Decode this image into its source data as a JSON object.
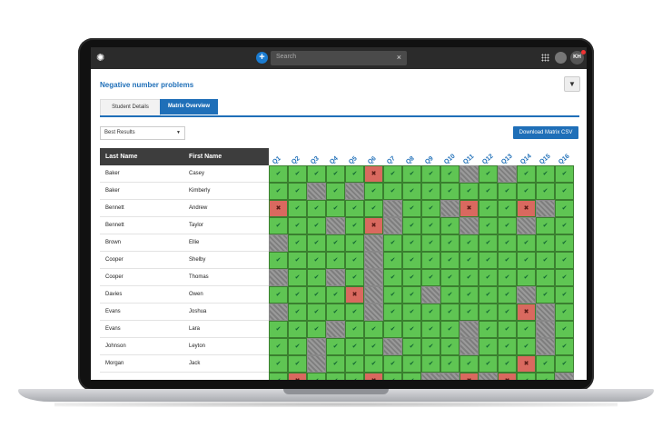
{
  "search": {
    "placeholder": "Search"
  },
  "user": {
    "initials": "KH"
  },
  "page": {
    "title": "Negative number problems"
  },
  "tabs": [
    {
      "label": "Student Details"
    },
    {
      "label": "Matrix Overview"
    }
  ],
  "controls": {
    "select_value": "Best Results",
    "download_label": "Download Matrix CSV"
  },
  "table": {
    "headers": {
      "last": "Last Name",
      "first": "First Name"
    },
    "questions": [
      "Q1",
      "Q2",
      "Q3",
      "Q4",
      "Q5",
      "Q6",
      "Q7",
      "Q8",
      "Q9",
      "Q10",
      "Q11",
      "Q12",
      "Q13",
      "Q14",
      "Q15",
      "Q16"
    ],
    "rows": [
      {
        "last": "Baker",
        "first": "Casey",
        "results": [
          "ok",
          "ok",
          "ok",
          "ok",
          "ok",
          "x",
          "ok",
          "ok",
          "ok",
          "ok",
          "na",
          "ok",
          "na",
          "ok",
          "ok",
          "ok"
        ]
      },
      {
        "last": "Baker",
        "first": "Kimberly",
        "results": [
          "ok",
          "ok",
          "na",
          "ok",
          "na",
          "ok",
          "ok",
          "ok",
          "ok",
          "ok",
          "ok",
          "ok",
          "ok",
          "ok",
          "ok",
          "ok"
        ]
      },
      {
        "last": "Bennett",
        "first": "Andrew",
        "results": [
          "x",
          "ok",
          "ok",
          "ok",
          "ok",
          "ok",
          "na",
          "ok",
          "ok",
          "na",
          "x",
          "ok",
          "ok",
          "x",
          "na",
          "ok"
        ]
      },
      {
        "last": "Bennett",
        "first": "Taylor",
        "results": [
          "ok",
          "ok",
          "ok",
          "na",
          "ok",
          "x",
          "na",
          "ok",
          "ok",
          "ok",
          "na",
          "ok",
          "ok",
          "na",
          "ok",
          "ok"
        ]
      },
      {
        "last": "Brown",
        "first": "Ellie",
        "results": [
          "na",
          "ok",
          "ok",
          "ok",
          "ok",
          "na",
          "ok",
          "ok",
          "ok",
          "ok",
          "ok",
          "ok",
          "ok",
          "ok",
          "ok",
          "ok"
        ]
      },
      {
        "last": "Cooper",
        "first": "Shelby",
        "results": [
          "ok",
          "ok",
          "ok",
          "ok",
          "ok",
          "na",
          "ok",
          "ok",
          "ok",
          "ok",
          "ok",
          "ok",
          "ok",
          "ok",
          "ok",
          "ok"
        ]
      },
      {
        "last": "Cooper",
        "first": "Thomas",
        "results": [
          "na",
          "ok",
          "ok",
          "na",
          "ok",
          "na",
          "ok",
          "ok",
          "ok",
          "ok",
          "ok",
          "ok",
          "ok",
          "ok",
          "ok",
          "ok"
        ]
      },
      {
        "last": "Davies",
        "first": "Owen",
        "results": [
          "ok",
          "ok",
          "ok",
          "ok",
          "x",
          "na",
          "ok",
          "ok",
          "na",
          "ok",
          "ok",
          "ok",
          "ok",
          "na",
          "ok",
          "ok"
        ]
      },
      {
        "last": "Evans",
        "first": "Joshua",
        "results": [
          "na",
          "ok",
          "ok",
          "ok",
          "ok",
          "na",
          "ok",
          "ok",
          "ok",
          "ok",
          "ok",
          "ok",
          "ok",
          "x",
          "na",
          "ok"
        ]
      },
      {
        "last": "Evans",
        "first": "Lara",
        "results": [
          "ok",
          "ok",
          "ok",
          "na",
          "ok",
          "ok",
          "ok",
          "ok",
          "ok",
          "ok",
          "na",
          "ok",
          "ok",
          "ok",
          "na",
          "ok"
        ]
      },
      {
        "last": "Johnson",
        "first": "Leyton",
        "results": [
          "ok",
          "ok",
          "na",
          "ok",
          "ok",
          "ok",
          "na",
          "ok",
          "ok",
          "ok",
          "na",
          "ok",
          "ok",
          "ok",
          "na",
          "ok"
        ]
      },
      {
        "last": "Morgan",
        "first": "Jack",
        "results": [
          "ok",
          "ok",
          "na",
          "ok",
          "ok",
          "ok",
          "ok",
          "ok",
          "ok",
          "ok",
          "ok",
          "ok",
          "ok",
          "x",
          "ok",
          "ok"
        ]
      },
      {
        "last": "",
        "first": "",
        "results": [
          "ok",
          "x",
          "ok",
          "ok",
          "ok",
          "x",
          "ok",
          "ok",
          "na",
          "na",
          "x",
          "na",
          "x",
          "ok",
          "ok",
          "na"
        ]
      }
    ]
  }
}
